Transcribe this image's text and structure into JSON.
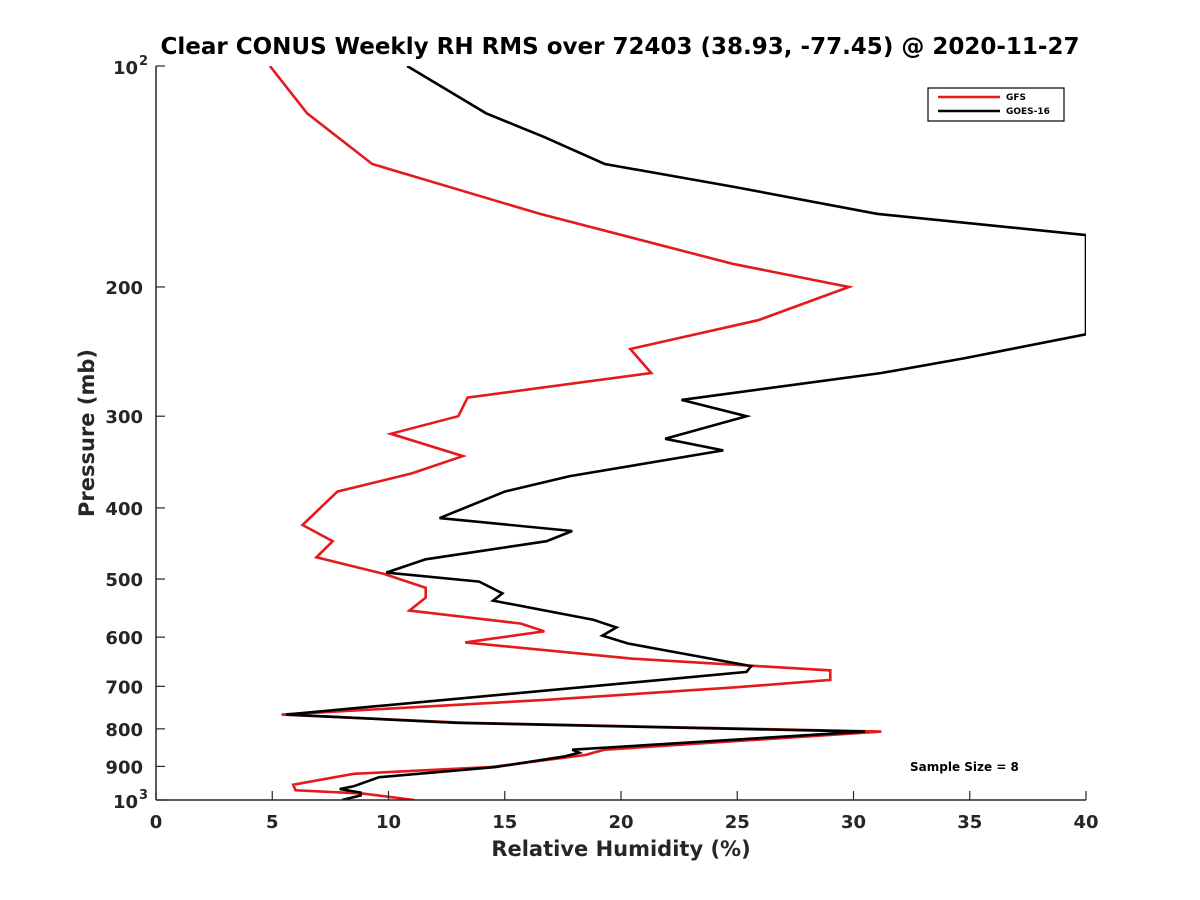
{
  "chart_data": {
    "type": "line",
    "title": "Clear CONUS Weekly RH RMS over 72403 (38.93, -77.45) @ 2020-11-27",
    "xlabel": "Relative Humidity (%)",
    "ylabel": "Pressure (mb)",
    "xlim": [
      0,
      40
    ],
    "ylim": [
      100,
      1000
    ],
    "y_scale": "log",
    "y_reversed": true,
    "grid": false,
    "legend_position": "top-right",
    "x_ticks": [
      {
        "value": 0,
        "label": "0"
      },
      {
        "value": 5,
        "label": "5"
      },
      {
        "value": 10,
        "label": "10"
      },
      {
        "value": 15,
        "label": "15"
      },
      {
        "value": 20,
        "label": "20"
      },
      {
        "value": 25,
        "label": "25"
      },
      {
        "value": 30,
        "label": "30"
      },
      {
        "value": 35,
        "label": "35"
      },
      {
        "value": 40,
        "label": "40"
      }
    ],
    "y_ticks": [
      {
        "value": 100,
        "base": "10",
        "sup": "2"
      },
      {
        "value": 200,
        "label": "200"
      },
      {
        "value": 300,
        "label": "300"
      },
      {
        "value": 400,
        "label": "400"
      },
      {
        "value": 500,
        "label": "500"
      },
      {
        "value": 600,
        "label": "600"
      },
      {
        "value": 700,
        "label": "700"
      },
      {
        "value": 800,
        "label": "800"
      },
      {
        "value": 900,
        "label": "900"
      },
      {
        "value": 1000,
        "base": "10",
        "sup": "3"
      }
    ],
    "series": [
      {
        "name": "GFS",
        "color": "#e41a1c",
        "points": [
          [
            4.9,
            100
          ],
          [
            6.5,
            116
          ],
          [
            9.3,
            136
          ],
          [
            16.5,
            159
          ],
          [
            24.8,
            186
          ],
          [
            29.8,
            200
          ],
          [
            25.9,
            222
          ],
          [
            20.4,
            243
          ],
          [
            21.3,
            262
          ],
          [
            13.4,
            283
          ],
          [
            13.0,
            300
          ],
          [
            10.1,
            317
          ],
          [
            13.2,
            340
          ],
          [
            11.0,
            359
          ],
          [
            7.8,
            380
          ],
          [
            6.3,
            422
          ],
          [
            7.6,
            444
          ],
          [
            6.9,
            467
          ],
          [
            9.8,
            492
          ],
          [
            11.6,
            514
          ],
          [
            11.6,
            530
          ],
          [
            10.9,
            552
          ],
          [
            15.7,
            575
          ],
          [
            16.7,
            589
          ],
          [
            13.3,
            610
          ],
          [
            20.5,
            642
          ],
          [
            29.0,
            666
          ],
          [
            29.0,
            686
          ],
          [
            25.0,
            702
          ],
          [
            16.9,
            730
          ],
          [
            5.4,
            765
          ],
          [
            13.3,
            785
          ],
          [
            31.2,
            807
          ],
          [
            19.3,
            854
          ],
          [
            18.8,
            862
          ],
          [
            18.5,
            868
          ],
          [
            14.4,
            902
          ],
          [
            8.5,
            921
          ],
          [
            5.9,
            953
          ],
          [
            6.0,
            970
          ],
          [
            8.9,
            980
          ],
          [
            11.1,
            1000
          ]
        ]
      },
      {
        "name": "GOES-16",
        "color": "#000000",
        "points": [
          [
            10.8,
            100
          ],
          [
            14.2,
            116
          ],
          [
            16.7,
            125
          ],
          [
            19.3,
            136
          ],
          [
            24.8,
            146
          ],
          [
            31.0,
            159
          ],
          [
            40.0,
            170
          ],
          [
            40.0,
            232
          ],
          [
            34.8,
            250
          ],
          [
            31.2,
            262
          ],
          [
            22.6,
            285
          ],
          [
            25.4,
            300
          ],
          [
            21.9,
            322
          ],
          [
            24.4,
            334
          ],
          [
            17.8,
            362
          ],
          [
            15.0,
            380
          ],
          [
            12.2,
            413
          ],
          [
            17.9,
            430
          ],
          [
            16.8,
            444
          ],
          [
            11.6,
            470
          ],
          [
            9.9,
            490
          ],
          [
            13.9,
            504
          ],
          [
            14.9,
            523
          ],
          [
            14.5,
            535
          ],
          [
            18.8,
            568
          ],
          [
            19.8,
            582
          ],
          [
            19.2,
            597
          ],
          [
            20.3,
            612
          ],
          [
            25.6,
            657
          ],
          [
            25.4,
            669
          ],
          [
            21.7,
            686
          ],
          [
            9.3,
            746
          ],
          [
            5.6,
            765
          ],
          [
            12.9,
            785
          ],
          [
            30.5,
            807
          ],
          [
            17.9,
            854
          ],
          [
            18.2,
            862
          ],
          [
            17.6,
            872
          ],
          [
            14.6,
            902
          ],
          [
            9.6,
            931
          ],
          [
            8.5,
            958
          ],
          [
            7.9,
            966
          ],
          [
            8.8,
            977
          ],
          [
            8.8,
            986
          ],
          [
            8.0,
            1000
          ]
        ]
      }
    ],
    "annotation": "Sample Size = 8"
  }
}
